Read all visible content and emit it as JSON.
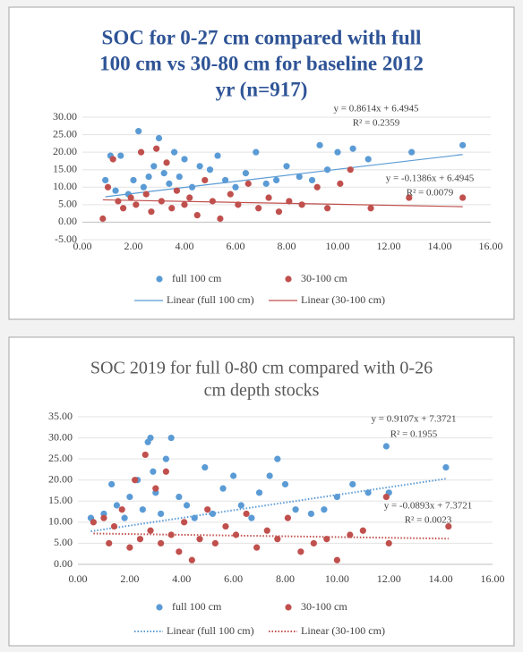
{
  "chart_data": [
    {
      "type": "scatter",
      "title": [
        "SOC for 0-27 cm  compared with full",
        "100 cm vs 30-80 cm for baseline 2012",
        "yr (n=917)"
      ],
      "xlim": [
        0,
        16
      ],
      "xticks": [
        {
          "value": 0,
          "label": "0.00"
        },
        {
          "value": 2,
          "label": "2.00"
        },
        {
          "value": 4,
          "label": "4.00"
        },
        {
          "value": 6,
          "label": "6.00"
        },
        {
          "value": 8,
          "label": "8.00"
        },
        {
          "value": 10,
          "label": "10.00"
        },
        {
          "value": 12,
          "label": "12.00"
        },
        {
          "value": 14,
          "label": "14.00"
        },
        {
          "value": 16,
          "label": "16.00"
        }
      ],
      "ylim": [
        -5,
        30
      ],
      "yticks": [
        {
          "value": -5,
          "label": "-5.00"
        },
        {
          "value": 0,
          "label": "0.00"
        },
        {
          "value": 5,
          "label": "5.00"
        },
        {
          "value": 10,
          "label": "10.00"
        },
        {
          "value": 15,
          "label": "15.00"
        },
        {
          "value": 20,
          "label": "20.00"
        },
        {
          "value": 25,
          "label": "25.00"
        },
        {
          "value": 30,
          "label": "30.00"
        }
      ],
      "grid": true,
      "trend_style": "solid",
      "series": [
        {
          "name": "full 100 cm",
          "color": "#5b9bd5",
          "x": [
            0.9,
            1.1,
            1.3,
            1.5,
            1.8,
            2.0,
            2.2,
            2.4,
            2.6,
            2.8,
            3.0,
            3.2,
            3.4,
            3.6,
            3.8,
            4.0,
            4.3,
            4.6,
            5.0,
            5.3,
            5.6,
            6.0,
            6.4,
            6.8,
            7.2,
            7.6,
            8.0,
            8.5,
            9.0,
            9.3,
            9.6,
            10.0,
            10.6,
            11.2,
            12.9,
            14.9
          ],
          "values": [
            12,
            19,
            9,
            19,
            8,
            12,
            26,
            10,
            13,
            16,
            24,
            14,
            11,
            20,
            13,
            18,
            10,
            16,
            15,
            19,
            12,
            10,
            14,
            20,
            11,
            12,
            16,
            13,
            12,
            22,
            15,
            20,
            21,
            18,
            20,
            22
          ],
          "trend": {
            "name": "Linear (full 100 cm)",
            "slope": 0.8614,
            "intercept": 6.4945,
            "equation": "y = 0.8614x + 6.4945",
            "r2": "R² = 0.2359"
          }
        },
        {
          "name": "30-100 cm",
          "color": "#c0504d",
          "x": [
            0.8,
            1.0,
            1.2,
            1.4,
            1.6,
            1.9,
            2.1,
            2.3,
            2.5,
            2.7,
            2.9,
            3.1,
            3.3,
            3.5,
            3.7,
            4.0,
            4.2,
            4.5,
            4.8,
            5.1,
            5.4,
            5.8,
            6.1,
            6.5,
            6.9,
            7.3,
            7.7,
            8.1,
            8.6,
            9.2,
            9.6,
            10.1,
            10.5,
            11.3,
            12.8,
            14.9
          ],
          "values": [
            1,
            10,
            18,
            6,
            4,
            7,
            5,
            20,
            8,
            3,
            21,
            6,
            17,
            4,
            9,
            5,
            7,
            2,
            12,
            6,
            1,
            8,
            5,
            11,
            4,
            7,
            3,
            6,
            5,
            10,
            4,
            11,
            15,
            4,
            7,
            7
          ],
          "trend": {
            "name": "Linear (30-100 cm)",
            "slope": -0.1386,
            "intercept": 6.4945,
            "equation": "y = -0.1386x + 6.4945",
            "r2": "R² = 0.0079"
          }
        }
      ]
    },
    {
      "type": "scatter",
      "title": [
        "SOC 2019 for full 0-80 cm compared with 0-26",
        "cm depth stocks"
      ],
      "xlim": [
        0,
        16
      ],
      "xticks": [
        {
          "value": 0,
          "label": "0.00"
        },
        {
          "value": 2,
          "label": "2.00"
        },
        {
          "value": 4,
          "label": "4.00"
        },
        {
          "value": 6,
          "label": "6.00"
        },
        {
          "value": 8,
          "label": "8.00"
        },
        {
          "value": 10,
          "label": "10.00"
        },
        {
          "value": 12,
          "label": "12.00"
        },
        {
          "value": 14,
          "label": "14.00"
        },
        {
          "value": 16,
          "label": "16.00"
        }
      ],
      "ylim": [
        0,
        35
      ],
      "yticks": [
        {
          "value": 0,
          "label": "0.00"
        },
        {
          "value": 5,
          "label": "5.00"
        },
        {
          "value": 10,
          "label": "10.00"
        },
        {
          "value": 15,
          "label": "15.00"
        },
        {
          "value": 20,
          "label": "20.00"
        },
        {
          "value": 25,
          "label": "25.00"
        },
        {
          "value": 30,
          "label": "30.00"
        },
        {
          "value": 35,
          "label": "35.00"
        }
      ],
      "grid": true,
      "trend_style": "dotted",
      "series": [
        {
          "name": "full 100 cm",
          "color": "#5b9bd5",
          "x": [
            0.5,
            1.0,
            1.3,
            1.5,
            1.8,
            2.0,
            2.3,
            2.5,
            2.7,
            2.8,
            2.9,
            3.0,
            3.2,
            3.4,
            3.6,
            3.9,
            4.2,
            4.5,
            4.9,
            5.2,
            5.6,
            6.0,
            6.3,
            6.7,
            7.0,
            7.4,
            7.7,
            8.0,
            8.4,
            9.0,
            9.5,
            10.0,
            10.6,
            11.2,
            11.9,
            12.0,
            14.2
          ],
          "values": [
            11,
            12,
            19,
            14,
            11,
            16,
            20,
            13,
            29,
            30,
            22,
            17,
            12,
            25,
            30,
            16,
            14,
            11,
            23,
            12,
            18,
            21,
            14,
            11,
            17,
            21,
            25,
            19,
            13,
            12,
            13,
            16,
            19,
            17,
            28,
            17,
            23
          ],
          "trend": {
            "name": "Linear (full 100 cm)",
            "slope": 0.9107,
            "intercept": 7.3721,
            "equation": "y = 0.9107x + 7.3721",
            "r2": "R² = 0.1955"
          }
        },
        {
          "name": "30-100 cm",
          "color": "#c0504d",
          "x": [
            0.6,
            1.0,
            1.2,
            1.4,
            1.7,
            2.0,
            2.2,
            2.4,
            2.6,
            2.8,
            3.0,
            3.2,
            3.4,
            3.6,
            3.9,
            4.1,
            4.4,
            4.7,
            5.0,
            5.3,
            5.7,
            6.1,
            6.5,
            6.9,
            7.3,
            7.7,
            8.1,
            8.6,
            9.1,
            9.6,
            10.0,
            10.5,
            11.0,
            11.9,
            12.0,
            14.3
          ],
          "values": [
            10,
            11,
            5,
            9,
            13,
            4,
            20,
            6,
            26,
            8,
            18,
            5,
            22,
            7,
            3,
            10,
            1,
            6,
            13,
            5,
            9,
            7,
            12,
            4,
            8,
            6,
            11,
            3,
            5,
            6,
            1,
            7,
            8,
            16,
            5,
            9
          ],
          "trend": {
            "name": "Linear (30-100 cm)",
            "slope": -0.0893,
            "intercept": 7.3721,
            "equation": "y = -0.0893x + 7.3721",
            "r2": "R² = 0.0023"
          }
        }
      ]
    }
  ]
}
